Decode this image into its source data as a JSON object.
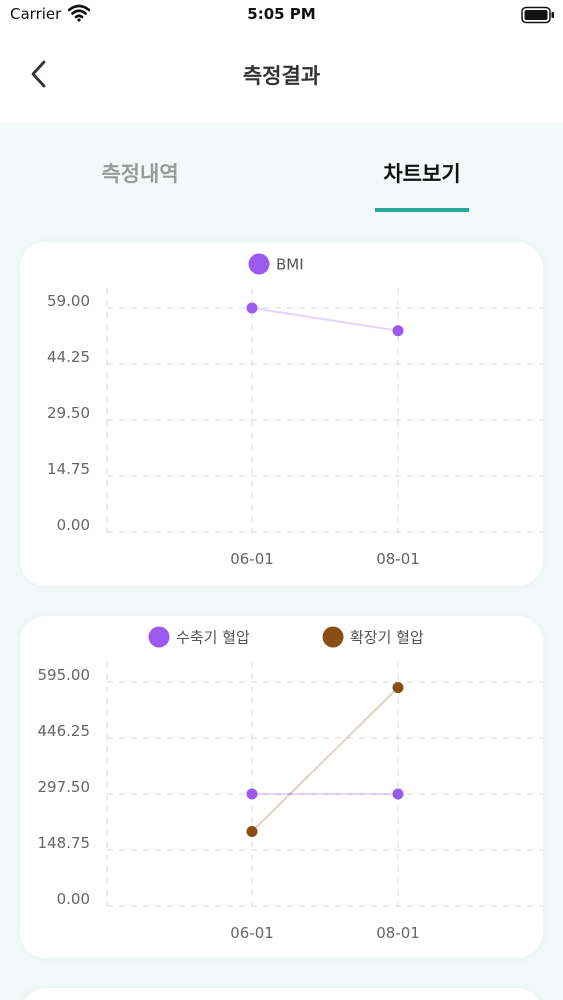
{
  "status_bar": {
    "carrier": "Carrier",
    "time": "5:05 PM"
  },
  "nav": {
    "title": "측정결과",
    "back_icon": "chevron-left-icon"
  },
  "tabs": [
    {
      "label": "측정내역",
      "active": false
    },
    {
      "label": "차트보기",
      "active": true
    }
  ],
  "colors": {
    "accent": "#2aa79b",
    "systolic": "#9b59f0",
    "diastolic": "#8b4d14"
  },
  "chart_data": [
    {
      "type": "line",
      "categories": [
        "06-01",
        "08-01"
      ],
      "series": [
        {
          "name": "BMI",
          "values": [
            59.0,
            53.0
          ],
          "color": "#9b59f0"
        }
      ],
      "y_ticks": [
        "0.00",
        "14.75",
        "29.50",
        "44.25",
        "59.00"
      ],
      "ylim": [
        0,
        59
      ],
      "grid": true,
      "legend": "top-center"
    },
    {
      "type": "line",
      "categories": [
        "06-01",
        "08-01"
      ],
      "series": [
        {
          "name": "수축기 혈압",
          "values": [
            297.5,
            297.5
          ],
          "color": "#9b59f0"
        },
        {
          "name": "확장기 혈압",
          "values": [
            198,
            580
          ],
          "color": "#8b4d14"
        }
      ],
      "y_ticks": [
        "0.00",
        "148.75",
        "297.50",
        "446.25",
        "595.00"
      ],
      "ylim": [
        0,
        595
      ],
      "grid": true,
      "legend": "top-center"
    }
  ]
}
